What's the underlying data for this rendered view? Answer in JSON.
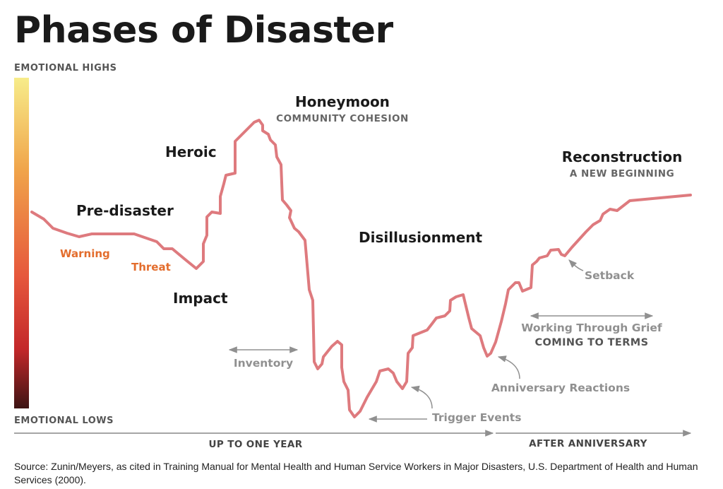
{
  "title": "Phases of Disaster",
  "scale": {
    "top_label": "EMOTIONAL HIGHS",
    "bottom_label": "EMOTIONAL LOWS",
    "gradient_colors": [
      "#f7ec8a",
      "#f0a44a",
      "#e6573c",
      "#c3282a",
      "#3d1414"
    ]
  },
  "phases": {
    "pre_disaster": "Pre-disaster",
    "warning": "Warning",
    "threat": "Threat",
    "impact": "Impact",
    "heroic": "Heroic",
    "honeymoon": "Honeymoon",
    "honeymoon_sub": "COMMUNITY COHESION",
    "disillusionment": "Disillusionment",
    "reconstruction": "Reconstruction",
    "reconstruction_sub": "A NEW BEGINNING"
  },
  "annotations": {
    "inventory": "Inventory",
    "trigger_events": "Trigger Events",
    "anniversary_reactions": "Anniversary Reactions",
    "setback": "Setback",
    "working_through_grief": "Working Through Grief",
    "coming_to_terms": "COMING TO TERMS"
  },
  "timeline": {
    "first": "UP TO ONE YEAR",
    "second": "AFTER ANNIVERSARY"
  },
  "source": "Source: Zunin/Meyers, as cited in Training Manual for Mental Health and Human Service Workers in Major Disasters, U.S. Department of Health and Human Services (2000).",
  "colors": {
    "curve": "#de7a7e",
    "accent_orange": "#e36d2d",
    "annotation_gray": "#909090",
    "axis_line": "#888888"
  }
}
